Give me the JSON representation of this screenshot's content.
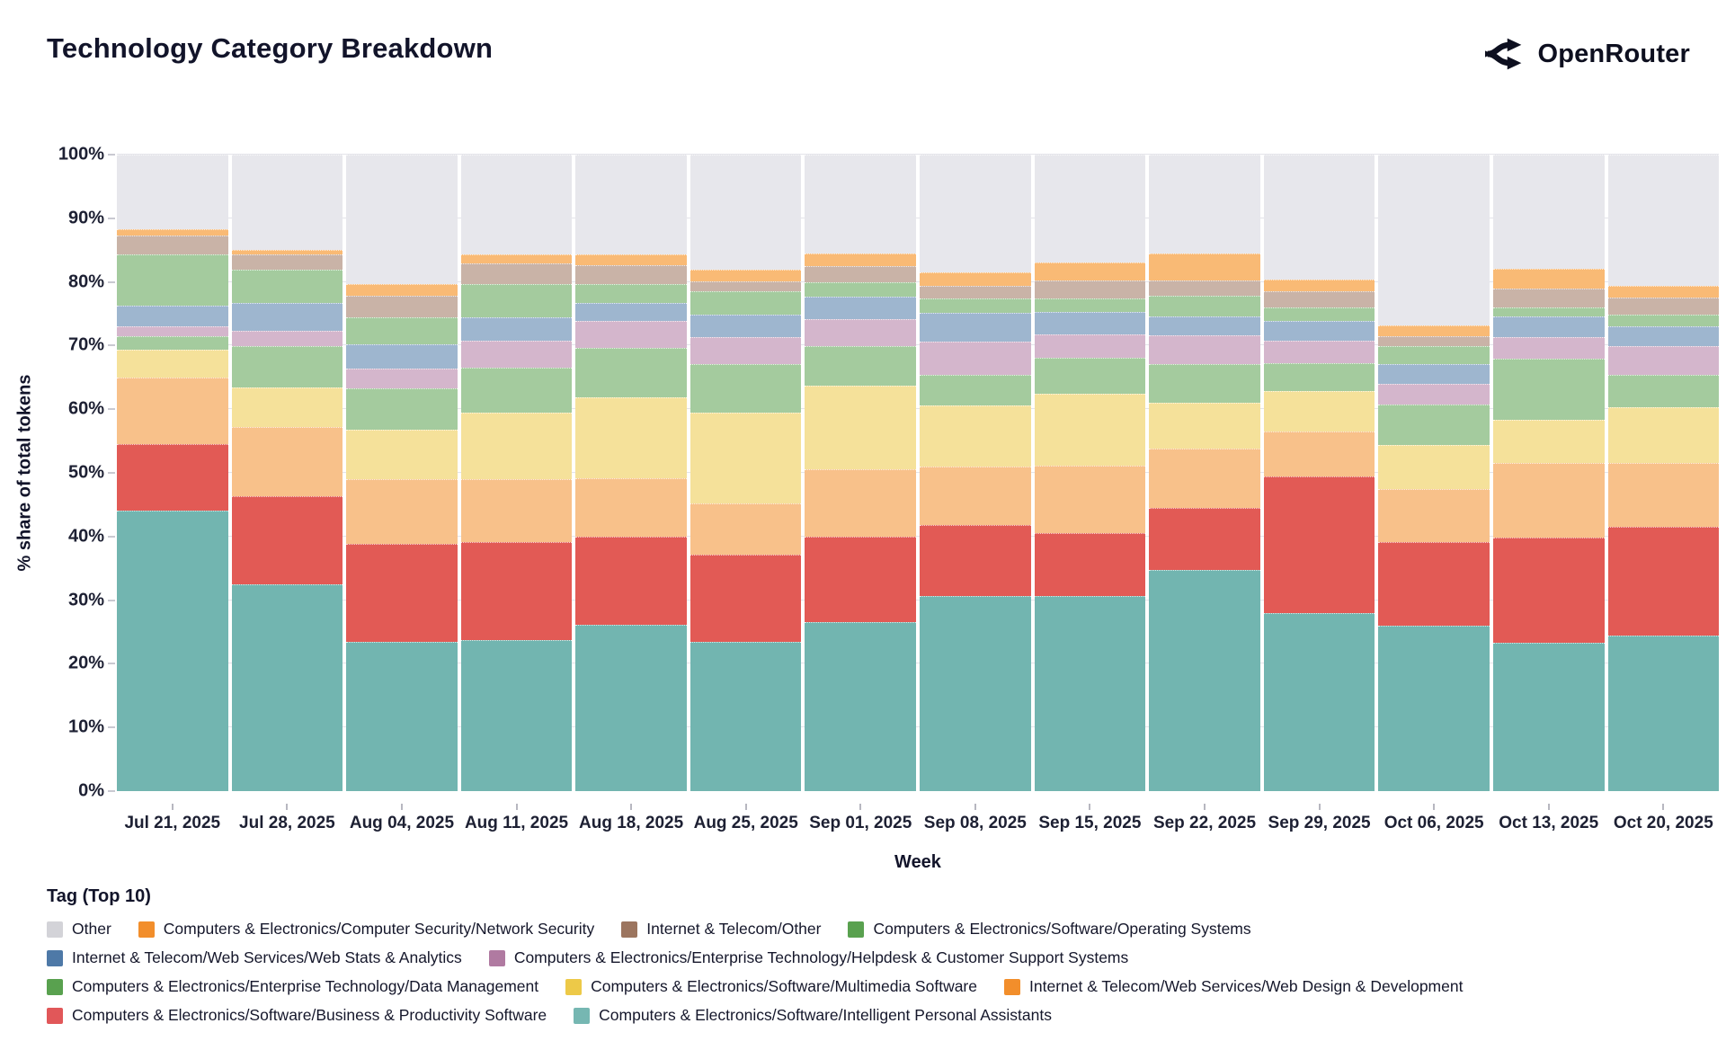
{
  "header": {
    "title": "Technology Category Breakdown",
    "brand": "OpenRouter"
  },
  "chart_data": {
    "type": "bar",
    "stacked": true,
    "title": "Technology Category Breakdown",
    "xlabel": "Week",
    "ylabel": "% share of total tokens",
    "ylim": [
      0,
      100
    ],
    "grid": true,
    "y_ticks": [
      "0%",
      "10%",
      "20%",
      "30%",
      "40%",
      "50%",
      "60%",
      "70%",
      "80%",
      "90%",
      "100%"
    ],
    "categories": [
      "Jul 21, 2025",
      "Jul 28, 2025",
      "Aug 04, 2025",
      "Aug 11, 2025",
      "Aug 18, 2025",
      "Aug 25, 2025",
      "Sep 01, 2025",
      "Sep 08, 2025",
      "Sep 15, 2025",
      "Sep 22, 2025",
      "Sep 29, 2025",
      "Oct 06, 2025",
      "Oct 13, 2025",
      "Oct 20, 2025"
    ],
    "legend_title": "Tag (Top 10)",
    "legend_rows": [
      [
        "other",
        "ns",
        "ito",
        "os"
      ],
      [
        "wsa",
        "hd"
      ],
      [
        "dm",
        "mm",
        "wdd"
      ],
      [
        "bps",
        "ipa"
      ]
    ],
    "series": [
      {
        "key": "ipa",
        "name": "Computers & Electronics/Software/Intelligent Personal Assistants",
        "bar_color": "#72b5b0",
        "swatch_color": "#76b7b2",
        "pattern": false,
        "values": [
          44.0,
          32.5,
          23.5,
          23.7,
          26.1,
          23.4,
          26.5,
          30.6,
          30.6,
          34.8,
          28.0,
          26.0,
          23.3,
          24.5
        ]
      },
      {
        "key": "bps",
        "name": "Computers & Electronics/Software/Business & Productivity Software",
        "bar_color": "#e25a55",
        "swatch_color": "#e15759",
        "pattern": false,
        "values": [
          10.5,
          13.8,
          15.3,
          15.4,
          13.9,
          13.8,
          13.5,
          11.2,
          10.0,
          9.7,
          21.5,
          13.1,
          16.5,
          17.0
        ]
      },
      {
        "key": "wdd",
        "name": "Internet & Telecom/Web Services/Web Design & Development",
        "bar_color": "#f8c18a",
        "swatch_color": "#f28e2b",
        "pattern": false,
        "values": [
          10.5,
          10.9,
          10.2,
          9.9,
          9.2,
          8.0,
          10.5,
          9.2,
          10.6,
          9.3,
          7.0,
          8.4,
          11.7,
          10.0
        ]
      },
      {
        "key": "mm",
        "name": "Computers & Electronics/Software/Multimedia Software",
        "bar_color": "#f5e19a",
        "swatch_color": "#edc948",
        "pattern": false,
        "values": [
          4.3,
          6.2,
          7.8,
          10.4,
          12.7,
          14.3,
          13.2,
          9.6,
          11.2,
          7.2,
          6.4,
          6.9,
          6.9,
          8.8
        ]
      },
      {
        "key": "dm",
        "name": "Computers & Electronics/Enterprise Technology/Data Management",
        "bar_color": "#a4cb9e",
        "swatch_color": "#59a14f",
        "pattern": false,
        "values": [
          2.2,
          6.5,
          6.5,
          7.2,
          7.8,
          7.6,
          6.2,
          4.8,
          5.7,
          6.1,
          4.4,
          6.3,
          9.6,
          5.1
        ]
      },
      {
        "key": "hd",
        "name": "Computers & Electronics/Enterprise Technology/Helpdesk & Customer Support Systems",
        "bar_color": "#d4b6cc",
        "swatch_color": "#b07aa1",
        "pattern": true,
        "values": [
          1.5,
          2.4,
          3.1,
          4.2,
          4.2,
          4.2,
          4.3,
          5.2,
          3.7,
          4.5,
          3.5,
          3.3,
          3.3,
          4.5
        ]
      },
      {
        "key": "wsa",
        "name": "Internet & Telecom/Web Services/Web Stats & Analytics",
        "bar_color": "#9eb6cf",
        "swatch_color": "#4e79a7",
        "pattern": false,
        "values": [
          3.3,
          4.4,
          3.8,
          3.6,
          2.8,
          3.6,
          3.5,
          4.5,
          3.5,
          3.0,
          3.1,
          3.1,
          3.3,
          3.2
        ]
      },
      {
        "key": "os",
        "name": "Computers & Electronics/Software/Operating Systems",
        "bar_color": "#a4cb9e",
        "swatch_color": "#59a14f",
        "pattern": false,
        "values": [
          8.0,
          5.2,
          4.2,
          5.3,
          3.0,
          3.7,
          2.3,
          2.3,
          2.1,
          3.3,
          2.1,
          2.8,
          1.4,
          1.8
        ]
      },
      {
        "key": "ito",
        "name": "Internet & Telecom/Other",
        "bar_color": "#c9b3a7",
        "swatch_color": "#9c755f",
        "pattern": true,
        "values": [
          3.0,
          2.4,
          3.4,
          3.2,
          3.0,
          1.5,
          2.5,
          2.0,
          2.8,
          2.4,
          2.6,
          1.6,
          3.0,
          2.6
        ]
      },
      {
        "key": "ns",
        "name": "Computers & Electronics/Computer Security/Network Security",
        "bar_color": "#f9ba75",
        "swatch_color": "#f28e2b",
        "pattern": false,
        "values": [
          1.0,
          0.7,
          1.9,
          1.5,
          1.7,
          1.8,
          2.0,
          2.1,
          2.9,
          4.2,
          1.8,
          1.7,
          3.1,
          1.9
        ]
      },
      {
        "key": "other",
        "name": "Other",
        "bar_color": "#e7e7ec",
        "swatch_color": "#d3d3d8",
        "pattern": false,
        "values": [
          11.7,
          15.0,
          20.3,
          15.6,
          15.6,
          18.1,
          15.5,
          18.5,
          16.9,
          15.5,
          19.6,
          26.8,
          17.9,
          20.6
        ]
      }
    ]
  }
}
